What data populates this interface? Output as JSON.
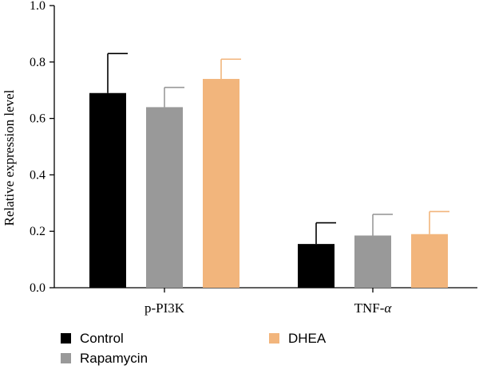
{
  "chart_data": {
    "type": "bar",
    "categories": [
      "p-PI3K",
      "TNF-α"
    ],
    "category_labels": [
      {
        "text": "p-PI3K",
        "italic_part": ""
      },
      {
        "text": "TNF-",
        "italic_part": "α"
      }
    ],
    "ylabel": "Relative expression level",
    "ylim": [
      0,
      1.0
    ],
    "yticks": [
      "0.0",
      "0.2",
      "0.4",
      "0.6",
      "0.8",
      "1.0"
    ],
    "grid": false,
    "legend_position": "bottom",
    "series": [
      {
        "name": "Control",
        "color": "#000000",
        "values": [
          0.69,
          0.155
        ],
        "errors": [
          0.14,
          0.075
        ]
      },
      {
        "name": "Rapamycin",
        "color": "#999999",
        "values": [
          0.64,
          0.185
        ],
        "errors": [
          0.07,
          0.075
        ]
      },
      {
        "name": "DHEA",
        "color": "#f2b57c",
        "values": [
          0.74,
          0.19
        ],
        "errors": [
          0.07,
          0.08
        ]
      }
    ]
  }
}
